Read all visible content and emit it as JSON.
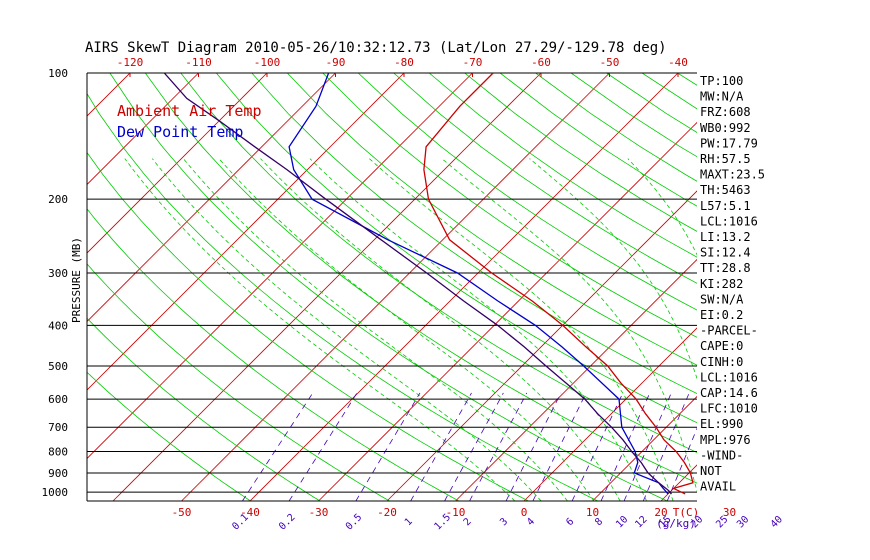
{
  "chart_data": {
    "type": "line",
    "title": "AIRS SkewT Diagram 2010-05-26/10:32:12.73 (Lat/Lon 27.29/-129.78 deg)",
    "ylabel": "PRESSURE (MB)",
    "bottom_axis_unit": "T(C)",
    "mixing_ratio_unit": "(g/kg)",
    "y_scale": "log",
    "ylim": [
      1050,
      100
    ],
    "pressure_ticks": [
      "100",
      "200",
      "300",
      "400",
      "500",
      "600",
      "700",
      "800",
      "900",
      "1000"
    ],
    "top_temp_ticks": [
      "-120",
      "-110",
      "-100",
      "-90",
      "-80",
      "-70",
      "-60",
      "-50",
      "-40"
    ],
    "bottom_temp_ticks": [
      "-50",
      "-40",
      "-30",
      "-20",
      "-10",
      "0",
      "10",
      "20",
      "30"
    ],
    "mixing_ratio_ticks": [
      "0.1",
      "0.2",
      "0.5",
      "1",
      "1.5",
      "2",
      "3",
      "4",
      "6",
      "8",
      "10",
      "12",
      "15",
      "20",
      "25",
      "30",
      "40"
    ],
    "colors": {
      "ambient": "#cc0000",
      "dewpoint": "#0000cc",
      "parcel": "#330066",
      "isotherm": "#cc0000",
      "dry_adiabat": "#00cc00",
      "moist_adiabat": "#00cc00",
      "mixing_ratio": "#4400bb",
      "isobar": "#000000"
    },
    "legend": {
      "position": "top-left",
      "entries": [
        "Ambient Air Temp",
        "Dew Point Temp"
      ]
    },
    "series": [
      {
        "name": "Ambient Air Temp",
        "points": [
          {
            "p": 1010,
            "t": 22.5
          },
          {
            "p": 980,
            "t": 20.0
          },
          {
            "p": 950,
            "t": 22.0
          },
          {
            "p": 900,
            "t": 20.2
          },
          {
            "p": 850,
            "t": 17.8
          },
          {
            "p": 800,
            "t": 15.0
          },
          {
            "p": 750,
            "t": 11.5
          },
          {
            "p": 700,
            "t": 8.5
          },
          {
            "p": 650,
            "t": 5.0
          },
          {
            "p": 600,
            "t": 1.5
          },
          {
            "p": 550,
            "t": -3.0
          },
          {
            "p": 500,
            "t": -7.5
          },
          {
            "p": 450,
            "t": -13.5
          },
          {
            "p": 400,
            "t": -20.0
          },
          {
            "p": 350,
            "t": -28.0
          },
          {
            "p": 300,
            "t": -38.0
          },
          {
            "p": 250,
            "t": -49.0
          },
          {
            "p": 200,
            "t": -58.0
          },
          {
            "p": 170,
            "t": -63.0
          },
          {
            "p": 150,
            "t": -66.0
          },
          {
            "p": 120,
            "t": -67.0
          },
          {
            "p": 100,
            "t": -67.0
          }
        ]
      },
      {
        "name": "Dew Point Temp",
        "points": [
          {
            "p": 1010,
            "t": 20.0
          },
          {
            "p": 980,
            "t": 18.5
          },
          {
            "p": 950,
            "t": 17.0
          },
          {
            "p": 900,
            "t": 12.0
          },
          {
            "p": 850,
            "t": 11.0
          },
          {
            "p": 800,
            "t": 9.0
          },
          {
            "p": 700,
            "t": 3.5
          },
          {
            "p": 600,
            "t": -1.0
          },
          {
            "p": 500,
            "t": -11.0
          },
          {
            "p": 450,
            "t": -17.0
          },
          {
            "p": 400,
            "t": -24.0
          },
          {
            "p": 350,
            "t": -33.0
          },
          {
            "p": 300,
            "t": -43.0
          },
          {
            "p": 250,
            "t": -58.0
          },
          {
            "p": 200,
            "t": -75.0
          },
          {
            "p": 170,
            "t": -82.0
          },
          {
            "p": 150,
            "t": -86.0
          },
          {
            "p": 120,
            "t": -88.0
          },
          {
            "p": 100,
            "t": -91.0
          }
        ]
      },
      {
        "points": [
          {
            "p": 1010,
            "t": 20.5
          },
          {
            "p": 990,
            "t": 19.5
          },
          {
            "p": 950,
            "t": 17.0
          },
          {
            "p": 900,
            "t": 14.0
          },
          {
            "p": 850,
            "t": 11.5
          },
          {
            "p": 800,
            "t": 8.5
          },
          {
            "p": 750,
            "t": 5.5
          },
          {
            "p": 700,
            "t": 2.0
          },
          {
            "p": 650,
            "t": -2.0
          },
          {
            "p": 600,
            "t": -6.0
          },
          {
            "p": 550,
            "t": -11.0
          },
          {
            "p": 500,
            "t": -16.5
          },
          {
            "p": 450,
            "t": -22.5
          },
          {
            "p": 400,
            "t": -29.5
          },
          {
            "p": 350,
            "t": -38.0
          },
          {
            "p": 300,
            "t": -47.5
          },
          {
            "p": 250,
            "t": -59.0
          },
          {
            "p": 200,
            "t": -73.0
          },
          {
            "p": 170,
            "t": -83.0
          },
          {
            "p": 150,
            "t": -91.0
          },
          {
            "p": 130,
            "t": -100.0
          },
          {
            "p": 115,
            "t": -108.0
          },
          {
            "p": 100,
            "t": -115.0
          }
        ]
      }
    ],
    "indices": [
      "TP:100",
      "MW:N/A",
      "FRZ:608",
      "WB0:992",
      "PW:17.79",
      "RH:57.5",
      "MAXT:23.5",
      "TH:5463",
      "L57:5.1",
      "LCL:1016",
      "LI:13.2",
      "SI:12.4",
      "TT:28.8",
      "KI:282",
      "SW:N/A",
      "EI:0.2",
      "-PARCEL-",
      "CAPE:0",
      "CINH:0",
      "LCL:1016",
      "CAP:14.6",
      "LFC:1010",
      "EL:990",
      "MPL:976",
      "-WIND-",
      "NOT",
      "AVAIL"
    ]
  }
}
